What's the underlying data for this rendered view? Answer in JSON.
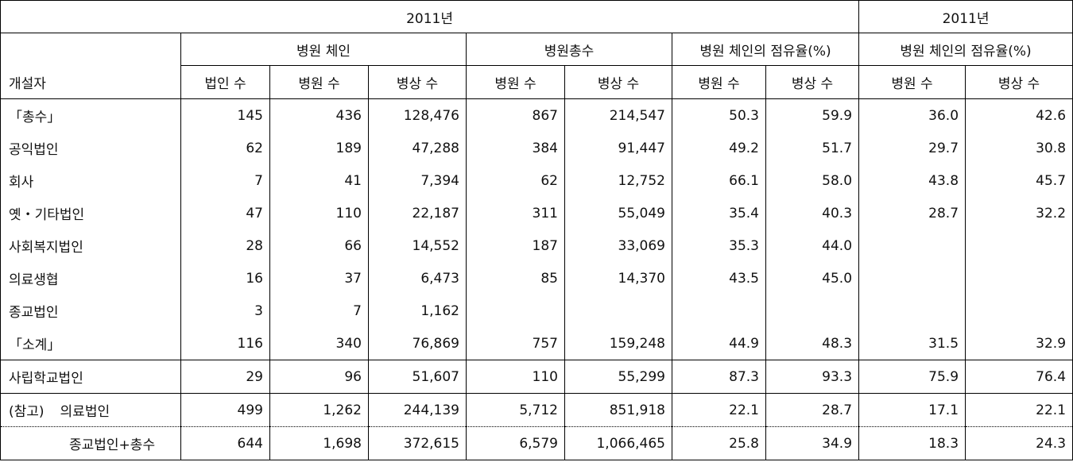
{
  "header": {
    "year_main": "2011년",
    "year_right": "2011년",
    "operator": "개설자",
    "group_chain": "병원 체인",
    "group_total": "병원총수",
    "group_share": "병원 체인의 점유율(%)",
    "group_share_right": "병원 체인의 점유율(%)",
    "col_corp": "법인 수",
    "col_hosp": "병원 수",
    "col_beds": "병상 수",
    "col_hosp2": "병원 수",
    "col_beds2": "병상 수",
    "col_hosp3": "병원 수",
    "col_beds3": "병상 수",
    "col_hosp4": "병원 수",
    "col_beds4": "병상 수"
  },
  "rows": [
    {
      "label": "「총수」",
      "v": [
        "145",
        "436",
        "128,476",
        "867",
        "214,547",
        "50.3",
        "59.9",
        "36.0",
        "42.6"
      ]
    },
    {
      "label": "공익법인",
      "v": [
        "62",
        "189",
        "47,288",
        "384",
        "91,447",
        "49.2",
        "51.7",
        "29.7",
        "30.8"
      ]
    },
    {
      "label": "회사",
      "v": [
        "7",
        "41",
        "7,394",
        "62",
        "12,752",
        "66.1",
        "58.0",
        "43.8",
        "45.7"
      ]
    },
    {
      "label": "옛・기타법인",
      "v": [
        "47",
        "110",
        "22,187",
        "311",
        "55,049",
        "35.4",
        "40.3",
        "28.7",
        "32.2"
      ]
    },
    {
      "label": "사회복지법인",
      "v": [
        "28",
        "66",
        "14,552",
        "187",
        "33,069",
        "35.3",
        "44.0",
        "",
        ""
      ]
    },
    {
      "label": "의료생협",
      "v": [
        "16",
        "37",
        "6,473",
        "85",
        "14,370",
        "43.5",
        "45.0",
        "",
        ""
      ]
    },
    {
      "label": "종교법인",
      "v": [
        "3",
        "7",
        "1,162",
        "",
        "",
        "",
        "",
        "",
        ""
      ]
    },
    {
      "label": "「소계」",
      "v": [
        "116",
        "340",
        "76,869",
        "757",
        "159,248",
        "44.9",
        "48.3",
        "31.5",
        "32.9"
      ]
    },
    {
      "label": "사립학교법인",
      "v": [
        "29",
        "96",
        "51,607",
        "110",
        "55,299",
        "87.3",
        "93.3",
        "75.9",
        "76.4"
      ]
    }
  ],
  "reference": {
    "tag": "(참고)",
    "rows": [
      {
        "label": "의료법인",
        "v": [
          "499",
          "1,262",
          "244,139",
          "5,712",
          "851,918",
          "22.1",
          "28.7",
          "17.1",
          "22.1"
        ]
      },
      {
        "label": "종교법인+총수",
        "v": [
          "644",
          "1,698",
          "372,615",
          "6,579",
          "1,066,465",
          "25.8",
          "34.9",
          "18.3",
          "24.3"
        ]
      }
    ]
  }
}
